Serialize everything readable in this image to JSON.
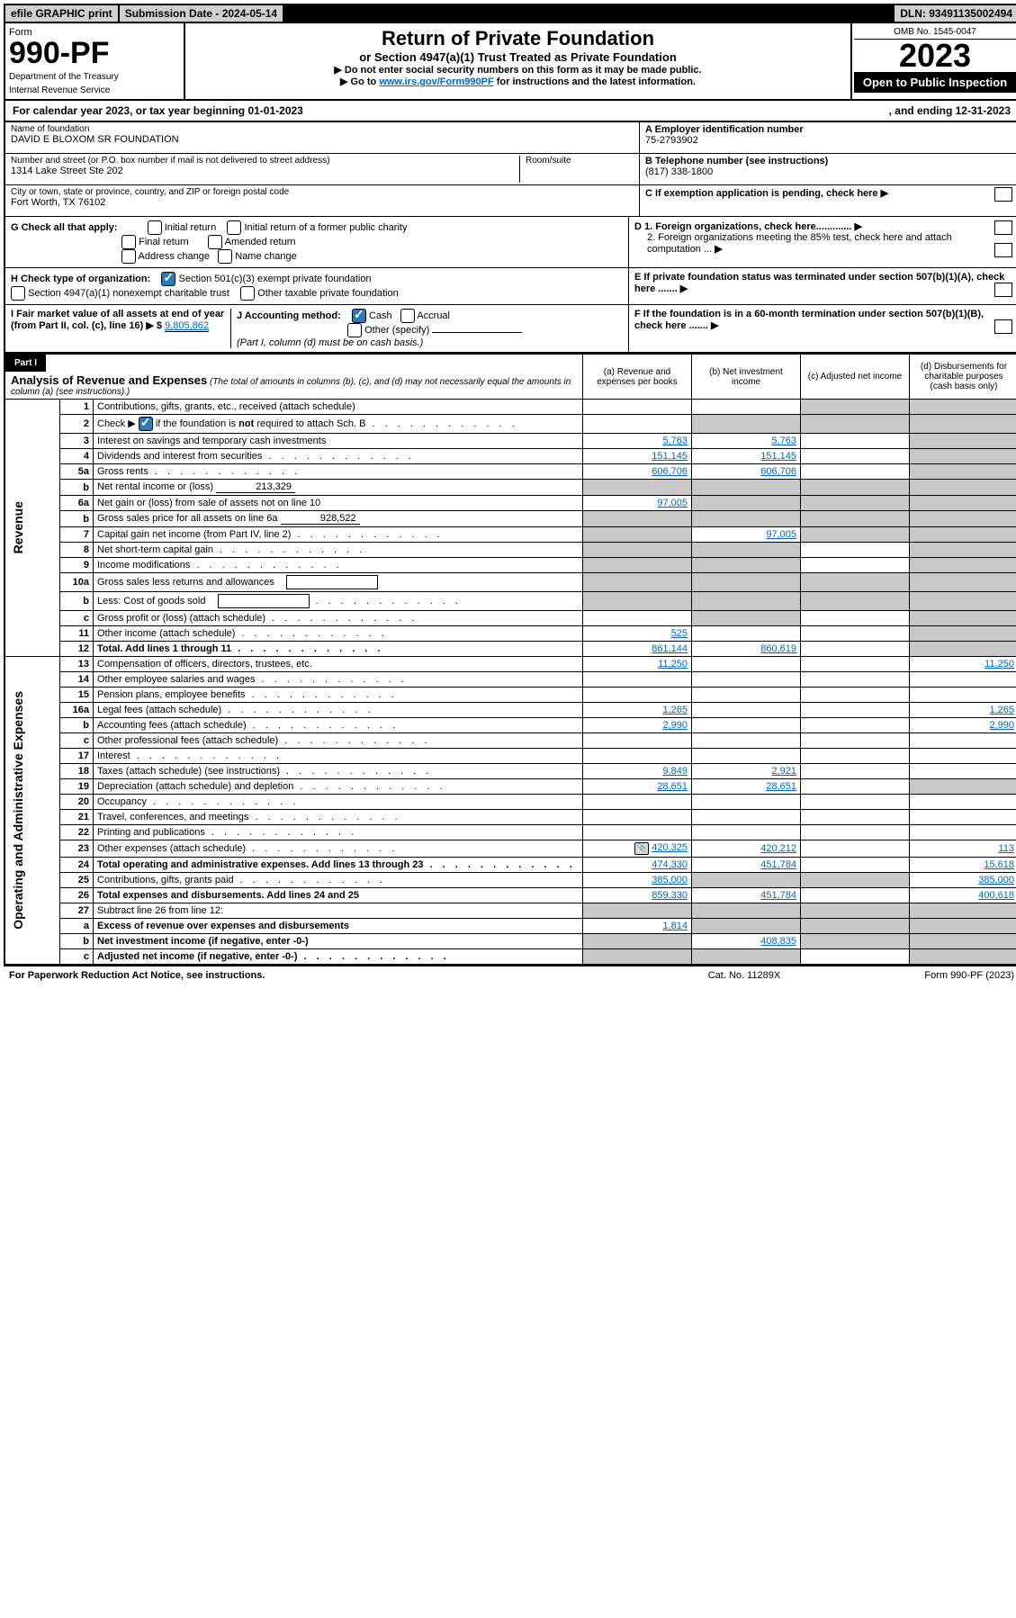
{
  "topbar": {
    "efile": "efile GRAPHIC print",
    "submission": "Submission Date - 2024-05-14",
    "dln": "DLN: 93491135002494"
  },
  "header": {
    "form_label": "Form",
    "form_number": "990-PF",
    "dept": "Department of the Treasury",
    "irs": "Internal Revenue Service",
    "title": "Return of Private Foundation",
    "subtitle": "or Section 4947(a)(1) Trust Treated as Private Foundation",
    "instr1": "▶ Do not enter social security numbers on this form as it may be made public.",
    "instr2_pre": "▶ Go to ",
    "instr2_link": "www.irs.gov/Form990PF",
    "instr2_post": " for instructions and the latest information.",
    "omb": "OMB No. 1545-0047",
    "tax_year": "2023",
    "open_public": "Open to Public Inspection"
  },
  "calendar": {
    "line_pre": "For calendar year 2023, or tax year beginning ",
    "begin": "01-01-2023",
    "mid": ", and ending ",
    "end": "12-31-2023"
  },
  "info": {
    "name_hint": "Name of foundation",
    "name": "DAVID E BLOXOM SR FOUNDATION",
    "addr_hint": "Number and street (or P.O. box number if mail is not delivered to street address)",
    "addr": "1314 Lake Street Ste 202",
    "room_hint": "Room/suite",
    "city_hint": "City or town, state or province, country, and ZIP or foreign postal code",
    "city": "Fort Worth, TX  76102",
    "a_label": "A Employer identification number",
    "a_value": "75-2793902",
    "b_label": "B Telephone number (see instructions)",
    "b_value": "(817) 338-1800",
    "c_label": "C If exemption application is pending, check here"
  },
  "checks": {
    "g_label": "G Check all that apply:",
    "g_opts": [
      "Initial return",
      "Initial return of a former public charity",
      "Final return",
      "Amended return",
      "Address change",
      "Name change"
    ],
    "h_label": "H Check type of organization:",
    "h_opt1": "Section 501(c)(3) exempt private foundation",
    "h_opt2": "Section 4947(a)(1) nonexempt charitable trust",
    "h_opt3": "Other taxable private foundation",
    "i_label": "I Fair market value of all assets at end of year (from Part II, col. (c), line 16) ▶ $",
    "i_value": "9,805,862",
    "j_label": "J Accounting method:",
    "j_cash": "Cash",
    "j_accrual": "Accrual",
    "j_other": "Other (specify)",
    "j_note": "(Part I, column (d) must be on cash basis.)",
    "d_label": "D 1. Foreign organizations, check here.............",
    "d2_label": "2. Foreign organizations meeting the 85% test, check here and attach computation ...",
    "e_label": "E If private foundation status was terminated under section 507(b)(1)(A), check here .......",
    "f_label": "F If the foundation is in a 60-month termination under section 507(b)(1)(B), check here ......."
  },
  "part1": {
    "header": "Part I",
    "title": "Analysis of Revenue and Expenses",
    "note": "(The total of amounts in columns (b), (c), and (d) may not necessarily equal the amounts in column (a) (see instructions).)",
    "col_a": "(a) Revenue and expenses per books",
    "col_b": "(b) Net investment income",
    "col_c": "(c) Adjusted net income",
    "col_d": "(d) Disbursements for charitable purposes (cash basis only)"
  },
  "side_labels": {
    "revenue": "Revenue",
    "expenses": "Operating and Administrative Expenses"
  },
  "rows": [
    {
      "n": "1",
      "d": "Contributions, gifts, grants, etc., received (attach schedule)",
      "a": "",
      "b": "",
      "c": "s",
      "dcol": "s"
    },
    {
      "n": "2",
      "d": "Check ▶ [✓] if the foundation is not required to attach Sch. B",
      "a": "",
      "b": "s",
      "c": "s",
      "dcol": "s",
      "chk": true,
      "dots": true
    },
    {
      "n": "3",
      "d": "Interest on savings and temporary cash investments",
      "a": "5,763",
      "b": "5,763",
      "c": "",
      "dcol": "s"
    },
    {
      "n": "4",
      "d": "Dividends and interest from securities",
      "a": "151,145",
      "b": "151,145",
      "c": "",
      "dcol": "s",
      "dots": true
    },
    {
      "n": "5a",
      "d": "Gross rents",
      "a": "606,706",
      "b": "606,706",
      "c": "",
      "dcol": "s",
      "dots": true
    },
    {
      "n": "b",
      "d": "Net rental income or (loss)",
      "a": "s",
      "b": "s",
      "c": "s",
      "dcol": "s",
      "inline": "213,329"
    },
    {
      "n": "6a",
      "d": "Net gain or (loss) from sale of assets not on line 10",
      "a": "97,005",
      "b": "s",
      "c": "s",
      "dcol": "s"
    },
    {
      "n": "b",
      "d": "Gross sales price for all assets on line 6a",
      "a": "s",
      "b": "s",
      "c": "s",
      "dcol": "s",
      "inline": "928,522"
    },
    {
      "n": "7",
      "d": "Capital gain net income (from Part IV, line 2)",
      "a": "s",
      "b": "97,005",
      "c": "s",
      "dcol": "s",
      "dots": true
    },
    {
      "n": "8",
      "d": "Net short-term capital gain",
      "a": "s",
      "b": "s",
      "c": "",
      "dcol": "s",
      "dots": true
    },
    {
      "n": "9",
      "d": "Income modifications",
      "a": "s",
      "b": "s",
      "c": "",
      "dcol": "s",
      "dots": true
    },
    {
      "n": "10a",
      "d": "Gross sales less returns and allowances",
      "a": "s",
      "b": "s",
      "c": "s",
      "dcol": "s",
      "box": true
    },
    {
      "n": "b",
      "d": "Less: Cost of goods sold",
      "a": "s",
      "b": "s",
      "c": "s",
      "dcol": "s",
      "box": true,
      "dots": true
    },
    {
      "n": "c",
      "d": "Gross profit or (loss) (attach schedule)",
      "a": "",
      "b": "s",
      "c": "",
      "dcol": "s",
      "dots": true
    },
    {
      "n": "11",
      "d": "Other income (attach schedule)",
      "a": "525",
      "b": "",
      "c": "",
      "dcol": "s",
      "dots": true
    },
    {
      "n": "12",
      "d": "Total. Add lines 1 through 11",
      "a": "861,144",
      "b": "860,619",
      "c": "",
      "dcol": "s",
      "bold": true,
      "dots": true
    },
    {
      "n": "13",
      "d": "Compensation of officers, directors, trustees, etc.",
      "a": "11,250",
      "b": "",
      "c": "",
      "dcol": "11,250"
    },
    {
      "n": "14",
      "d": "Other employee salaries and wages",
      "a": "",
      "b": "",
      "c": "",
      "dcol": "",
      "dots": true
    },
    {
      "n": "15",
      "d": "Pension plans, employee benefits",
      "a": "",
      "b": "",
      "c": "",
      "dcol": "",
      "dots": true
    },
    {
      "n": "16a",
      "d": "Legal fees (attach schedule)",
      "a": "1,265",
      "b": "",
      "c": "",
      "dcol": "1,265",
      "dots": true
    },
    {
      "n": "b",
      "d": "Accounting fees (attach schedule)",
      "a": "2,990",
      "b": "",
      "c": "",
      "dcol": "2,990",
      "dots": true
    },
    {
      "n": "c",
      "d": "Other professional fees (attach schedule)",
      "a": "",
      "b": "",
      "c": "",
      "dcol": "",
      "dots": true
    },
    {
      "n": "17",
      "d": "Interest",
      "a": "",
      "b": "",
      "c": "",
      "dcol": "",
      "dots": true
    },
    {
      "n": "18",
      "d": "Taxes (attach schedule) (see instructions)",
      "a": "9,849",
      "b": "2,921",
      "c": "",
      "dcol": "",
      "dots": true
    },
    {
      "n": "19",
      "d": "Depreciation (attach schedule) and depletion",
      "a": "28,651",
      "b": "28,651",
      "c": "",
      "dcol": "s",
      "dots": true
    },
    {
      "n": "20",
      "d": "Occupancy",
      "a": "",
      "b": "",
      "c": "",
      "dcol": "",
      "dots": true
    },
    {
      "n": "21",
      "d": "Travel, conferences, and meetings",
      "a": "",
      "b": "",
      "c": "",
      "dcol": "",
      "dots": true
    },
    {
      "n": "22",
      "d": "Printing and publications",
      "a": "",
      "b": "",
      "c": "",
      "dcol": "",
      "dots": true
    },
    {
      "n": "23",
      "d": "Other expenses (attach schedule)",
      "a": "420,325",
      "b": "420,212",
      "c": "",
      "dcol": "113",
      "dots": true,
      "icon": true
    },
    {
      "n": "24",
      "d": "Total operating and administrative expenses. Add lines 13 through 23",
      "a": "474,330",
      "b": "451,784",
      "c": "",
      "dcol": "15,618",
      "bold": true,
      "dots": true
    },
    {
      "n": "25",
      "d": "Contributions, gifts, grants paid",
      "a": "385,000",
      "b": "s",
      "c": "s",
      "dcol": "385,000",
      "dots": true
    },
    {
      "n": "26",
      "d": "Total expenses and disbursements. Add lines 24 and 25",
      "a": "859,330",
      "b": "451,784",
      "c": "",
      "dcol": "400,618",
      "bold": true
    },
    {
      "n": "27",
      "d": "Subtract line 26 from line 12:",
      "a": "s",
      "b": "s",
      "c": "s",
      "dcol": "s"
    },
    {
      "n": "a",
      "d": "Excess of revenue over expenses and disbursements",
      "a": "1,814",
      "b": "s",
      "c": "s",
      "dcol": "s",
      "bold": true
    },
    {
      "n": "b",
      "d": "Net investment income (if negative, enter -0-)",
      "a": "s",
      "b": "408,835",
      "c": "s",
      "dcol": "s",
      "bold": true
    },
    {
      "n": "c",
      "d": "Adjusted net income (if negative, enter -0-)",
      "a": "s",
      "b": "s",
      "c": "",
      "dcol": "s",
      "bold": true,
      "dots": true
    }
  ],
  "footer": {
    "left": "For Paperwork Reduction Act Notice, see instructions.",
    "mid": "Cat. No. 11289X",
    "right": "Form 990-PF (2023)"
  }
}
